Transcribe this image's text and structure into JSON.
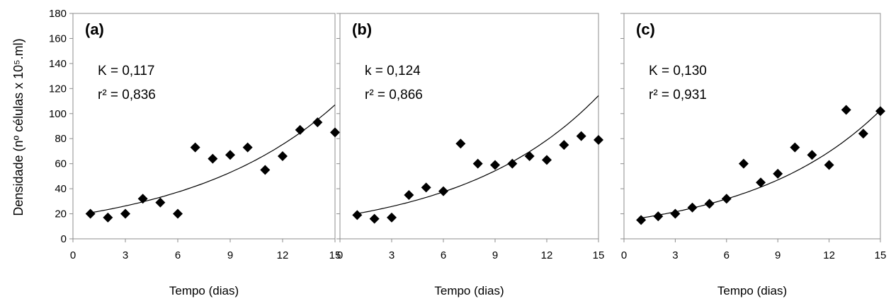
{
  "chart_data": [
    {
      "type": "scatter",
      "panel_label": "(a)",
      "annotations": [
        "K = 0,117",
        "r² = 0,836"
      ],
      "xlabel": "Tempo (dias)",
      "ylabel": "Densidade (nº células x 10⁵.ml)",
      "xlim": [
        0,
        15
      ],
      "ylim": [
        0,
        180
      ],
      "xticks": [
        "0",
        "3",
        "6",
        "9",
        "12",
        "15"
      ],
      "yticks": [
        "0",
        "20",
        "40",
        "60",
        "80",
        "100",
        "120",
        "140",
        "160",
        "180"
      ],
      "points": {
        "x": [
          1,
          2,
          3,
          4,
          5,
          6,
          7,
          8,
          9,
          10,
          11,
          12,
          13,
          14,
          15
        ],
        "y": [
          20,
          17,
          20,
          32,
          29,
          20,
          73,
          64,
          67,
          73,
          55,
          66,
          87,
          93,
          85
        ]
      },
      "trendline": {
        "form": "exponential",
        "a": 18.5,
        "k": 0.117,
        "x_range": [
          1,
          15
        ]
      }
    },
    {
      "type": "scatter",
      "panel_label": "(b)",
      "annotations": [
        "k = 0,124",
        "r² = 0,866"
      ],
      "xlabel": "Tempo (dias)",
      "xlim": [
        0,
        15
      ],
      "ylim": [
        0,
        180
      ],
      "xticks": [
        "0",
        "3",
        "6",
        "9",
        "12",
        "15"
      ],
      "points": {
        "x": [
          1,
          2,
          3,
          4,
          5,
          6,
          7,
          8,
          9,
          10,
          11,
          12,
          13,
          14,
          15
        ],
        "y": [
          19,
          16,
          17,
          35,
          41,
          38,
          76,
          60,
          59,
          60,
          66,
          63,
          75,
          82,
          79
        ]
      },
      "trendline": {
        "form": "exponential",
        "a": 17.8,
        "k": 0.124,
        "x_range": [
          1,
          15
        ]
      }
    },
    {
      "type": "scatter",
      "panel_label": "(c)",
      "annotations": [
        "K = 0,130",
        "r² = 0,931"
      ],
      "xlabel": "Tempo (dias)",
      "xlim": [
        0,
        15
      ],
      "ylim": [
        0,
        180
      ],
      "xticks": [
        "0",
        "3",
        "6",
        "9",
        "12",
        "15"
      ],
      "points": {
        "x": [
          1,
          2,
          3,
          4,
          5,
          6,
          7,
          8,
          9,
          10,
          11,
          12,
          13,
          14,
          15
        ],
        "y": [
          15,
          18,
          20,
          25,
          28,
          32,
          60,
          45,
          52,
          73,
          67,
          59,
          103,
          84,
          102
        ]
      },
      "trendline": {
        "form": "exponential",
        "a": 14.6,
        "k": 0.13,
        "x_range": [
          1,
          15
        ]
      }
    }
  ]
}
